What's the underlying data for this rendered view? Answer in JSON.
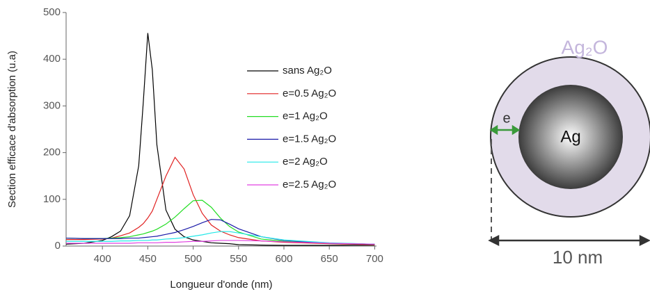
{
  "chart_data": {
    "type": "line",
    "x_label": "Longueur d'onde (nm)",
    "y_label": "Section efficace d'absorption (u.a)",
    "x": [
      360,
      380,
      400,
      410,
      420,
      430,
      440,
      445,
      450,
      455,
      460,
      470,
      480,
      490,
      500,
      510,
      520,
      530,
      540,
      550,
      575,
      600,
      650,
      700
    ],
    "series": [
      {
        "name": "sans Ag₂O",
        "color": "#000000",
        "values": [
          4,
          6,
          12,
          20,
          32,
          65,
          172,
          307,
          456,
          377,
          217,
          77,
          36,
          20,
          13,
          10,
          7,
          6,
          5,
          3,
          2,
          1.5,
          1.5,
          2
        ]
      },
      {
        "name": "e=0.5 Ag₂O",
        "color": "#e02020",
        "values": [
          14,
          14,
          15,
          17,
          22,
          28,
          40,
          48,
          60,
          75,
          100,
          150,
          190,
          165,
          110,
          70,
          45,
          32,
          24,
          18,
          11,
          8,
          5,
          3
        ]
      },
      {
        "name": "e=1 Ag₂O",
        "color": "#22dd22",
        "values": [
          17,
          16,
          16,
          17,
          18,
          20,
          24,
          26,
          29,
          32,
          36,
          47,
          62,
          80,
          97,
          98,
          83,
          60,
          42,
          30,
          15,
          10,
          6,
          4
        ]
      },
      {
        "name": "e=1.5 Ag₂O",
        "color": "#1a1aa8",
        "values": [
          17,
          16,
          16,
          16,
          16,
          17,
          17,
          18,
          19,
          20,
          21,
          25,
          29,
          35,
          42,
          50,
          57,
          56,
          47,
          37,
          20,
          12,
          6,
          4
        ]
      },
      {
        "name": "e=2 Ag₂O",
        "color": "#22e8e8",
        "values": [
          10,
          10,
          10,
          10,
          11,
          11,
          12,
          12,
          12,
          13,
          13,
          15,
          16,
          18,
          21,
          24,
          28,
          31,
          31,
          28,
          20,
          13,
          7,
          4
        ]
      },
      {
        "name": "e=2.5 Ag₂O",
        "color": "#e040e0",
        "values": [
          6,
          6,
          6,
          6,
          6,
          6,
          7,
          7,
          7,
          7,
          7,
          8,
          8,
          9,
          10,
          10,
          11,
          12,
          12,
          12,
          11,
          9,
          6,
          4
        ]
      }
    ],
    "xlim": [
      360,
      702
    ],
    "xticks": [
      400,
      450,
      500,
      550,
      600,
      650,
      700
    ],
    "ylim": [
      0,
      500
    ],
    "yticks": [
      0,
      100,
      200,
      300,
      400,
      500
    ]
  },
  "diagram": {
    "shell_label": "Ag₂O",
    "core_label": "Ag",
    "thickness_label": "e",
    "size_label": "10 nm"
  }
}
